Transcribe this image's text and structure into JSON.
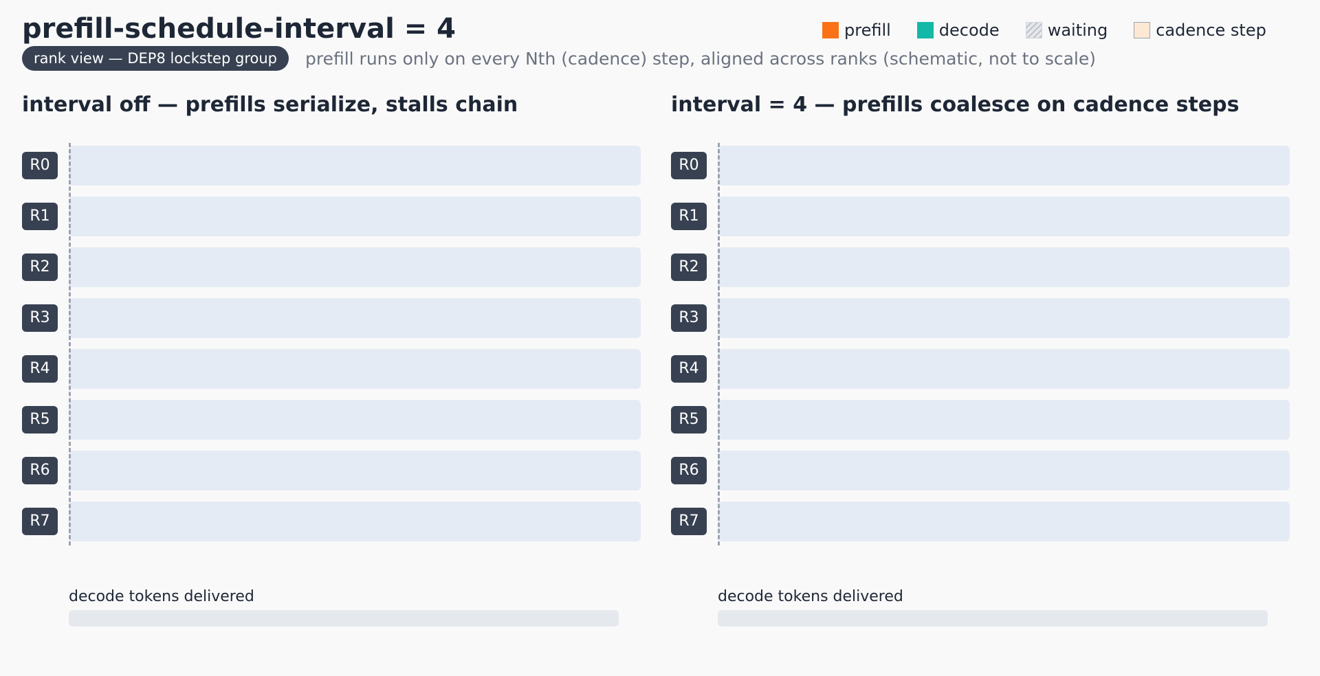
{
  "title": "prefill-schedule-interval = 4",
  "view_badge": "rank view — DEP8 lockstep group",
  "subtitle": "prefill runs only on every Nth (cadence) step, aligned across ranks (schematic, not to scale)",
  "legend": [
    {
      "label": "prefill",
      "color": "#f97316",
      "style": "solid"
    },
    {
      "label": "decode",
      "color": "#14b8a6",
      "style": "solid"
    },
    {
      "label": "waiting",
      "color": "#d1d5db",
      "style": "hatched"
    },
    {
      "label": "cadence step",
      "color": "#fde8d4",
      "style": "outlined"
    }
  ],
  "colors": {
    "track": "#e5ebf5",
    "rank_badge": "#374151",
    "token_bar": "#e5e9ee"
  },
  "panels": [
    {
      "title": "interval off — prefills serialize, stalls chain",
      "ranks": [
        "R0",
        "R1",
        "R2",
        "R3",
        "R4",
        "R5",
        "R6",
        "R7"
      ],
      "tokens_label": "decode tokens delivered"
    },
    {
      "title": "interval = 4 — prefills coalesce on cadence steps",
      "ranks": [
        "R0",
        "R1",
        "R2",
        "R3",
        "R4",
        "R5",
        "R6",
        "R7"
      ],
      "tokens_label": "decode tokens delivered"
    }
  ]
}
